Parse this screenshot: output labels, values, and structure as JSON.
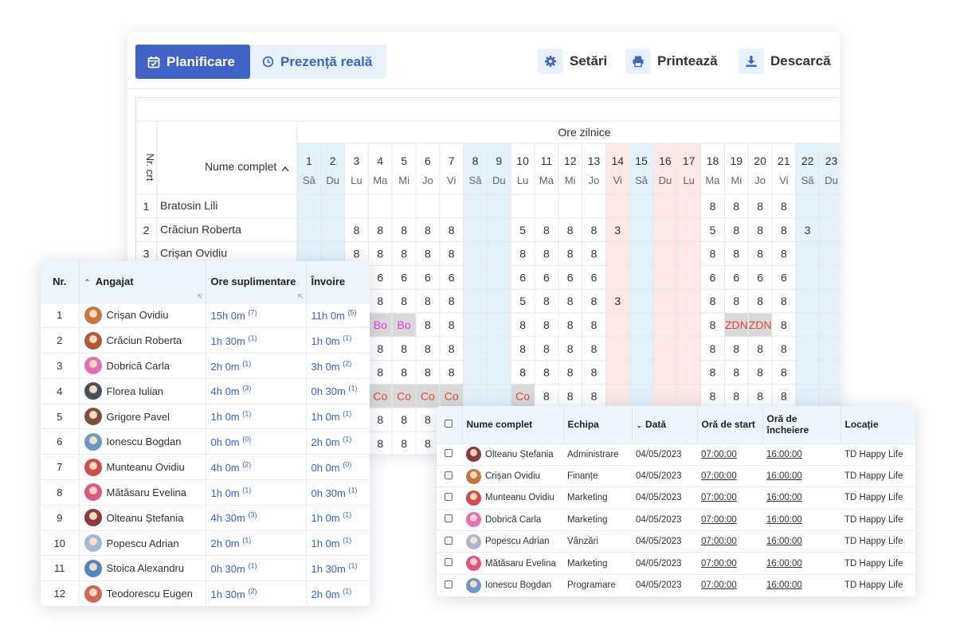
{
  "toolbar": {
    "tabs": [
      {
        "label": "Planificare",
        "active": true
      },
      {
        "label": "Prezență reală",
        "active": false
      }
    ],
    "actions": [
      {
        "label": "Setări",
        "icon": "gear-icon"
      },
      {
        "label": "Printează",
        "icon": "printer-icon"
      },
      {
        "label": "Descarcă",
        "icon": "download-icon"
      }
    ],
    "accent": "#3f63c7"
  },
  "schedule": {
    "col_nr": "Nr. crt",
    "col_name": "Nume complet",
    "group_header": "Ore zilnice",
    "days": [
      {
        "d": "1",
        "w": "Să",
        "type": "weekend"
      },
      {
        "d": "2",
        "w": "Du",
        "type": "weekend"
      },
      {
        "d": "3",
        "w": "Lu",
        "type": "work"
      },
      {
        "d": "4",
        "w": "Ma",
        "type": "work"
      },
      {
        "d": "5",
        "w": "Mi",
        "type": "work"
      },
      {
        "d": "6",
        "w": "Jo",
        "type": "work"
      },
      {
        "d": "7",
        "w": "Vi",
        "type": "work"
      },
      {
        "d": "8",
        "w": "Să",
        "type": "weekend"
      },
      {
        "d": "9",
        "w": "Du",
        "type": "weekend"
      },
      {
        "d": "10",
        "w": "Lu",
        "type": "work"
      },
      {
        "d": "11",
        "w": "Ma",
        "type": "work"
      },
      {
        "d": "12",
        "w": "Mi",
        "type": "work"
      },
      {
        "d": "13",
        "w": "Jo",
        "type": "work"
      },
      {
        "d": "14",
        "w": "Vi",
        "type": "holiday"
      },
      {
        "d": "15",
        "w": "Să",
        "type": "weekend"
      },
      {
        "d": "16",
        "w": "Du",
        "type": "holiday"
      },
      {
        "d": "17",
        "w": "Lu",
        "type": "holiday"
      },
      {
        "d": "18",
        "w": "Ma",
        "type": "work"
      },
      {
        "d": "19",
        "w": "Mi",
        "type": "work"
      },
      {
        "d": "20",
        "w": "Jo",
        "type": "work"
      },
      {
        "d": "21",
        "w": "Vi",
        "type": "work"
      },
      {
        "d": "22",
        "w": "Să",
        "type": "weekend"
      },
      {
        "d": "23",
        "w": "Du",
        "type": "weekend"
      }
    ],
    "rows": [
      {
        "nr": "1",
        "name": "Bratosin Lili",
        "cells": [
          "",
          "",
          "",
          "",
          "",
          "",
          "",
          "",
          "",
          "",
          "",
          "",
          "",
          "",
          "",
          "",
          "",
          "8",
          "8",
          "8",
          "8",
          "",
          ""
        ]
      },
      {
        "nr": "2",
        "name": "Crăciun Roberta",
        "cells": [
          "",
          "",
          "8",
          "8",
          "8",
          "8",
          "8",
          "",
          "",
          "5",
          "8",
          "8",
          "8",
          "3",
          "",
          "",
          "",
          "5",
          "8",
          "8",
          "8",
          "3",
          ""
        ]
      },
      {
        "nr": "3",
        "name": "Crișan Ovidiu",
        "cells": [
          "",
          "",
          "8",
          "8",
          "8",
          "8",
          "8",
          "",
          "",
          "8",
          "8",
          "8",
          "8",
          "",
          "",
          "",
          "",
          "8",
          "8",
          "8",
          "8",
          "",
          ""
        ]
      },
      {
        "nr": "",
        "name": "",
        "cells": [
          "",
          "",
          "",
          "6",
          "6",
          "6",
          "6",
          "",
          "",
          "6",
          "6",
          "6",
          "6",
          "",
          "",
          "",
          "",
          "6",
          "6",
          "6",
          "6",
          "",
          ""
        ]
      },
      {
        "nr": "",
        "name": "",
        "cells": [
          "",
          "",
          "",
          "8",
          "8",
          "8",
          "8",
          "",
          "",
          "5",
          "8",
          "8",
          "8",
          "3",
          "",
          "",
          "",
          "8",
          "8",
          "8",
          "8",
          "",
          ""
        ]
      },
      {
        "nr": "",
        "name": "",
        "cells": [
          "",
          "",
          "",
          "Bo",
          "Bo",
          "8",
          "8",
          "",
          "",
          "8",
          "8",
          "8",
          "8",
          "",
          "",
          "",
          "",
          "8",
          "ZDN",
          "ZDN",
          "8",
          "",
          ""
        ]
      },
      {
        "nr": "",
        "name": "",
        "cells": [
          "",
          "",
          "",
          "8",
          "8",
          "8",
          "8",
          "",
          "",
          "8",
          "8",
          "8",
          "8",
          "",
          "",
          "",
          "",
          "8",
          "8",
          "8",
          "8",
          "",
          ""
        ]
      },
      {
        "nr": "",
        "name": "",
        "cells": [
          "",
          "",
          "",
          "8",
          "8",
          "8",
          "8",
          "",
          "",
          "8",
          "8",
          "8",
          "8",
          "",
          "",
          "",
          "",
          "8",
          "8",
          "8",
          "8",
          "",
          ""
        ]
      },
      {
        "nr": "",
        "name": "",
        "cells": [
          "",
          "",
          "",
          "Co",
          "Co",
          "Co",
          "Co",
          "",
          "",
          "Co",
          "8",
          "8",
          "8",
          "",
          "",
          "",
          "",
          "8",
          "8",
          "8",
          "8",
          "",
          ""
        ]
      },
      {
        "nr": "",
        "name": "",
        "cells": [
          "",
          "",
          "",
          "8",
          "8",
          "8",
          "8",
          "",
          "",
          "",
          "",
          "",
          "",
          "",
          "",
          "",
          "",
          "",
          "",
          "",
          "",
          "",
          ""
        ]
      },
      {
        "nr": "",
        "name": "",
        "cells": [
          "",
          "",
          "",
          "8",
          "8",
          "8",
          "8",
          "",
          "",
          "",
          "",
          "",
          "",
          "",
          "",
          "",
          "",
          "",
          "",
          "",
          "",
          "",
          ""
        ]
      }
    ],
    "colors": {
      "weekend": "#e3f1fb",
      "holiday": "#fce8e6",
      "bo": "#e23fd1",
      "co": "#e2463b",
      "zdn": "#e2463b",
      "special_bg": "#d9d9d9"
    }
  },
  "overtime": {
    "headers": [
      "Nr.",
      "Angajat",
      "Ore suplimentare",
      "Învoire"
    ],
    "rows": [
      {
        "nr": "1",
        "name": "Crișan Ovidiu",
        "ot": "15h 0m",
        "ot_n": "(7)",
        "lv": "11h 0m",
        "lv_n": "(5)",
        "color": "#c9743f"
      },
      {
        "nr": "2",
        "name": "Crăciun Roberta",
        "ot": "1h 30m",
        "ot_n": "(1)",
        "lv": "1h 0m",
        "lv_n": "(1)",
        "color": "#b05a3c"
      },
      {
        "nr": "3",
        "name": "Dobrică Carla",
        "ot": "2h 0m",
        "ot_n": "(1)",
        "lv": "3h 0m",
        "lv_n": "(2)",
        "color": "#e76db5"
      },
      {
        "nr": "4",
        "name": "Florea Iulian",
        "ot": "4h 0m",
        "ot_n": "(3)",
        "lv": "0h 30m",
        "lv_n": "(1)",
        "color": "#4a4f5e"
      },
      {
        "nr": "5",
        "name": "Grigore Pavel",
        "ot": "1h 0m",
        "ot_n": "(1)",
        "lv": "1h 0m",
        "lv_n": "(1)",
        "color": "#7a4f3e"
      },
      {
        "nr": "6",
        "name": "Ionescu Bogdan",
        "ot": "0h 0m",
        "ot_n": "(0)",
        "lv": "2h 0m",
        "lv_n": "(1)",
        "color": "#6c98c8"
      },
      {
        "nr": "7",
        "name": "Munteanu Ovidiu",
        "ot": "4h 0m",
        "ot_n": "(2)",
        "lv": "0h 0m",
        "lv_n": "(0)",
        "color": "#d44a4a"
      },
      {
        "nr": "8",
        "name": "Mătăsaru Evelina",
        "ot": "1h 0m",
        "ot_n": "(1)",
        "lv": "0h 30m",
        "lv_n": "(1)",
        "color": "#e0567e"
      },
      {
        "nr": "9",
        "name": "Olteanu Ștefania",
        "ot": "4h 30m",
        "ot_n": "(3)",
        "lv": "1h 0m",
        "lv_n": "(1)",
        "color": "#8c3a3a"
      },
      {
        "nr": "10",
        "name": "Popescu Adrian",
        "ot": "2h 0m",
        "ot_n": "(1)",
        "lv": "1h 0m",
        "lv_n": "(1)",
        "color": "#a6b8d4"
      },
      {
        "nr": "11",
        "name": "Stoica Alexandru",
        "ot": "0h 30m",
        "ot_n": "(1)",
        "lv": "1h 30m",
        "lv_n": "(1)",
        "color": "#4e86c2"
      },
      {
        "nr": "12",
        "name": "Teodorescu Eugen",
        "ot": "1h 30m",
        "ot_n": "(2)",
        "lv": "2h 0m",
        "lv_n": "(1)",
        "color": "#d4645a"
      }
    ]
  },
  "attendance": {
    "headers": [
      "Nume complet",
      "Echipa",
      "Dată",
      "Oră de start",
      "Oră de încheiere",
      "Locație"
    ],
    "rows": [
      {
        "name": "Olteanu Ștefania",
        "team": "Administrare",
        "date": "04/05/2023",
        "start": "07:00:00",
        "end": "16:00:00",
        "loc": "TD Happy Life",
        "color": "#8c3a3a"
      },
      {
        "name": "Crișan Ovidiu",
        "team": "Finanțe",
        "date": "04/05/2023",
        "start": "07:00:00",
        "end": "16:00:00",
        "loc": "TD Happy Life",
        "color": "#c9743f"
      },
      {
        "name": "Munteanu Ovidiu",
        "team": "Marketing",
        "date": "04/05/2023",
        "start": "07:00:00",
        "end": "16:00:00",
        "loc": "TD Happy Life",
        "color": "#d44a4a"
      },
      {
        "name": "Dobrică Carla",
        "team": "Marketing",
        "date": "04/05/2023",
        "start": "07:00:00",
        "end": "16:00:00",
        "loc": "TD Happy Life",
        "color": "#e76db5"
      },
      {
        "name": "Popescu Adrian",
        "team": "Vânzări",
        "date": "04/05/2023",
        "start": "07:00:00",
        "end": "16:00:00",
        "loc": "TD Happy Life",
        "color": "#a6b8d4"
      },
      {
        "name": "Mătăsaru Evelina",
        "team": "Marketing",
        "date": "04/05/2023",
        "start": "07:00:00",
        "end": "16:00:00",
        "loc": "TD Happy Life",
        "color": "#e0567e"
      },
      {
        "name": "Ionescu Bogdan",
        "team": "Programare",
        "date": "04/05/2023",
        "start": "07:00:00",
        "end": "16:00:00",
        "loc": "TD Happy Life",
        "color": "#6c98c8"
      }
    ]
  }
}
